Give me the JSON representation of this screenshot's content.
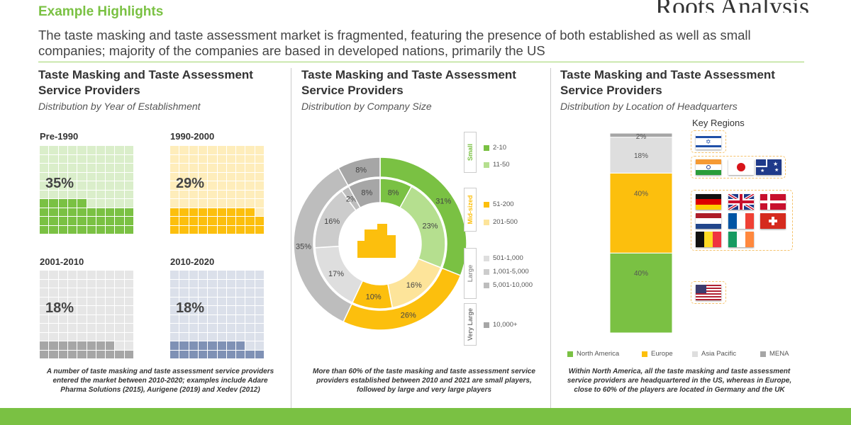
{
  "header": {
    "section_title": "Example Highlights",
    "brand": "Roots Analysis",
    "headline": "The taste masking and taste assessment market is fragmented, featuring the presence of both established as well as small companies; majority of the companies are based in developed nations, primarily the US"
  },
  "colors": {
    "green": "#7ac143",
    "light_green": "#b5df8f",
    "yellow": "#fcbf0d",
    "light_yellow": "#fde49a",
    "grey": "#bdbdbd",
    "light_grey": "#dedede",
    "dark_grey": "#a6a6a6",
    "blue_grey": "#7f91b5"
  },
  "panels": {
    "year": {
      "title": "Taste Masking and Taste Assessment Service Providers",
      "subtitle": "Distribution by Year of Establishment",
      "note": "A number of taste masking and taste assessment service providers entered the market between 2010-2020; examples include Adare Pharma Solutions (2015), Aurigene (2019) and Xedev (2012)"
    },
    "size": {
      "title": "Taste Masking and Taste Assessment Service Providers",
      "subtitle": "Distribution by Company Size",
      "note": "More than 60% of the taste masking and taste assessment service providers established between 2010 and 2021 are small players, followed by large and very large players",
      "categories": [
        "Small",
        "Mid-sized",
        "Large",
        "Very Large"
      ],
      "legend": [
        "2-10",
        "11-50",
        "51-200",
        "201-500",
        "501-1,000",
        "1,001-5,000",
        "5,001-10,000",
        "10,000+"
      ]
    },
    "location": {
      "title": "Taste Masking and Taste Assessment Service Providers",
      "subtitle": "Distribution by Location of Headquarters",
      "note": "Within North America, all the taste masking and taste assessment service providers are headquartered in the US, whereas in Europe, close to 60% of the players are located in Germany and the UK",
      "key_regions": "Key Regions",
      "flags": [
        "israel-flag",
        "india-flag",
        "japan-flag",
        "australia-flag",
        "germany-flag",
        "uk-flag",
        "denmark-flag",
        "netherlands-flag",
        "france-flag",
        "switzerland-flag",
        "belgium-flag",
        "ireland-flag",
        "usa-flag"
      ]
    }
  },
  "chart_data": [
    {
      "type": "waffle",
      "title": "Distribution by Year of Establishment",
      "categories": [
        "Pre-1990",
        "1990-2000",
        "2001-2010",
        "2010-2020"
      ],
      "values": [
        35,
        29,
        18,
        18
      ],
      "labels": [
        "35%",
        "29%",
        "18%",
        "18%"
      ],
      "filled_cells": [
        35,
        29,
        18,
        18
      ],
      "colors": [
        "#7ac143",
        "#fcbf0d",
        "#a6a6a6",
        "#7f91b5"
      ]
    },
    {
      "type": "pie",
      "title": "Distribution by Company Size",
      "rings": [
        {
          "ring": "outer",
          "slices": [
            {
              "label": "31%",
              "value": 31,
              "color": "#7ac143"
            },
            {
              "label": "26%",
              "value": 26,
              "color": "#fcbf0d"
            },
            {
              "label": "35%",
              "value": 35,
              "color": "#bdbdbd"
            },
            {
              "label": "8%",
              "value": 8,
              "color": "#a6a6a6"
            }
          ]
        },
        {
          "ring": "inner",
          "slices": [
            {
              "label": "8%",
              "value": 8,
              "color": "#7ac143"
            },
            {
              "label": "23%",
              "value": 23,
              "color": "#b5df8f"
            },
            {
              "label": "16%",
              "value": 16,
              "color": "#fde49a"
            },
            {
              "label": "10%",
              "value": 10,
              "color": "#fcbf0d"
            },
            {
              "label": "17%",
              "value": 17,
              "color": "#dedede"
            },
            {
              "label": "16%",
              "value": 16,
              "color": "#cccccc"
            },
            {
              "label": "2%",
              "value": 2,
              "color": "#bdbdbd"
            },
            {
              "label": "8%",
              "value": 8,
              "color": "#a6a6a6"
            }
          ]
        }
      ]
    },
    {
      "type": "bar",
      "stacked": true,
      "title": "Distribution by Location of Headquarters",
      "series": [
        {
          "name": "North America",
          "values": [
            40
          ],
          "label": "40%",
          "color": "#7ac143"
        },
        {
          "name": "Europe",
          "values": [
            40
          ],
          "label": "40%",
          "color": "#fcbf0d"
        },
        {
          "name": "Asia Pacific",
          "values": [
            18
          ],
          "label": "18%",
          "color": "#dedede"
        },
        {
          "name": "MENA",
          "values": [
            2
          ],
          "label": "2%",
          "color": "#a6a6a6"
        }
      ],
      "ylim": [
        0,
        100
      ],
      "legend": "bottom"
    }
  ]
}
